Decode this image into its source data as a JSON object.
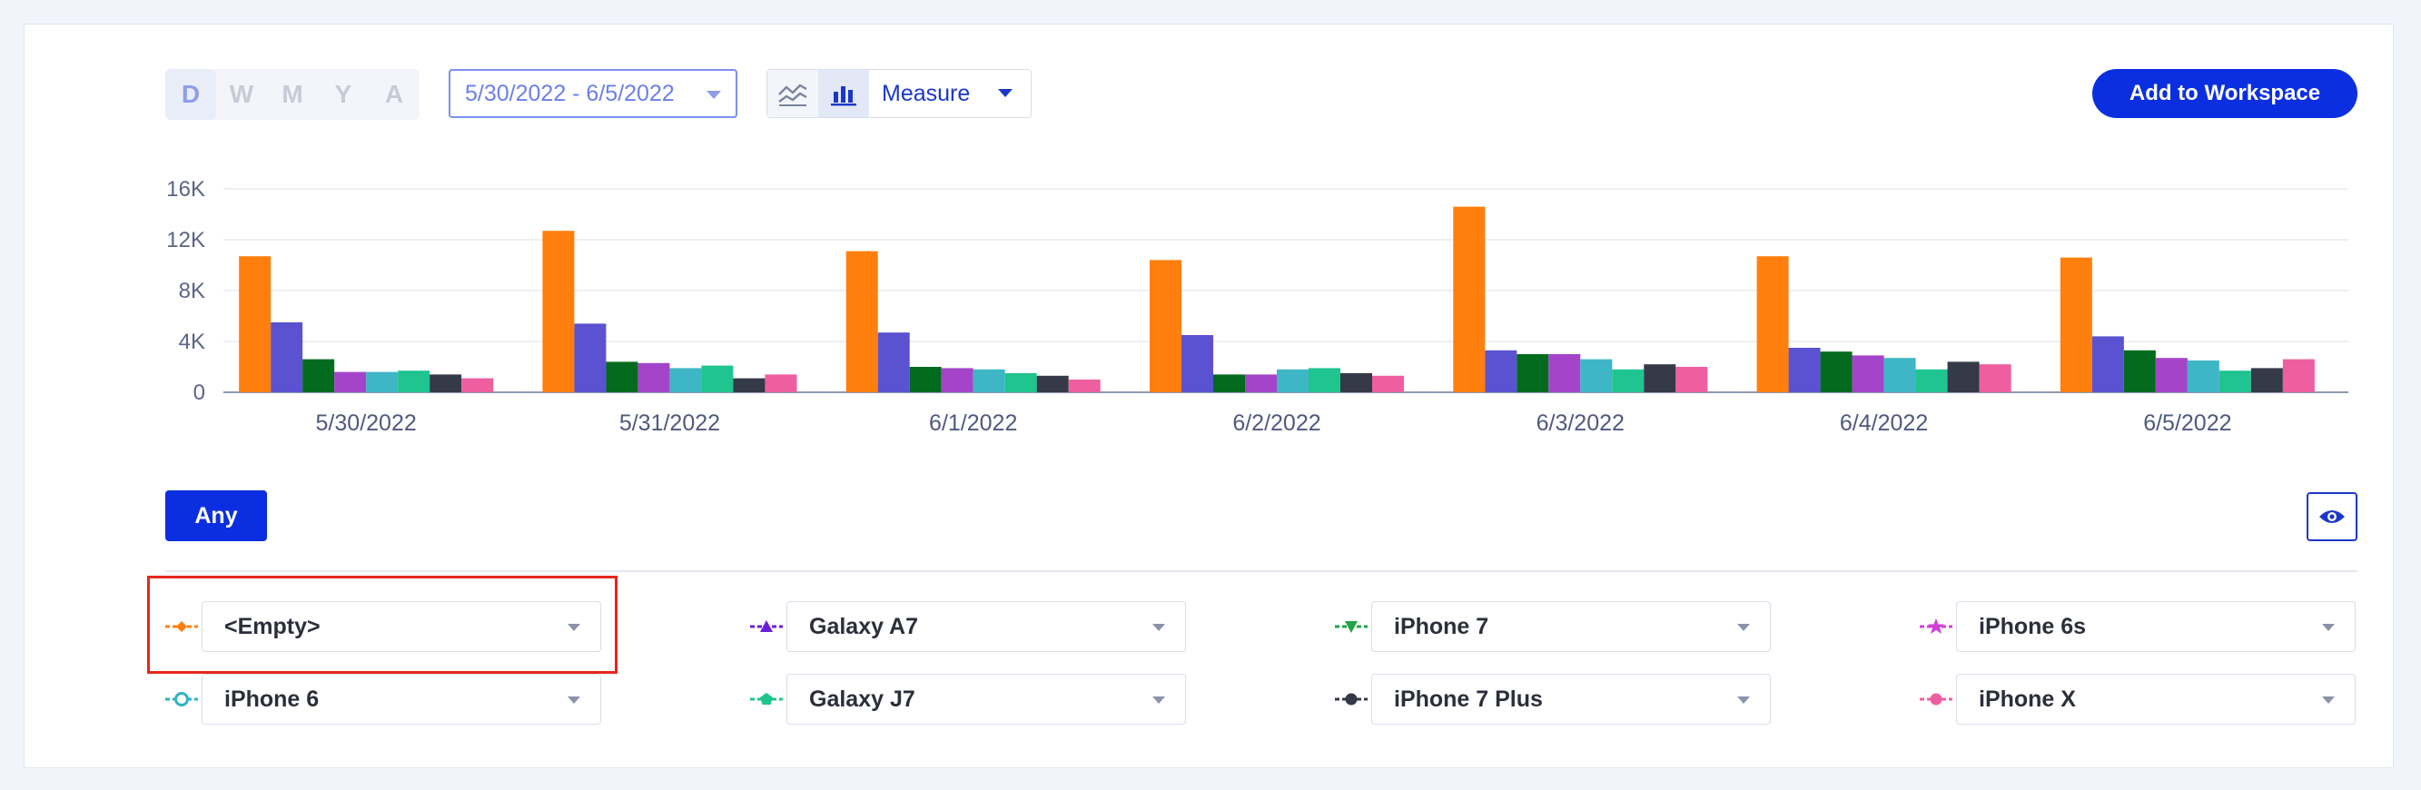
{
  "granularity": {
    "options": [
      "D",
      "W",
      "M",
      "Y",
      "A"
    ],
    "active": "D"
  },
  "date_range": "5/30/2022 - 6/5/2022",
  "measure_label": "Measure",
  "add_workspace_label": "Add to Workspace",
  "any_label": "Any",
  "chart_data": {
    "type": "bar",
    "categories": [
      "5/30/2022",
      "5/31/2022",
      "6/1/2022",
      "6/2/2022",
      "6/3/2022",
      "6/4/2022",
      "6/5/2022"
    ],
    "ylim": [
      0,
      16000
    ],
    "yticks": [
      0,
      4000,
      8000,
      12000,
      16000
    ],
    "ytick_labels": [
      "0",
      "4K",
      "8K",
      "12K",
      "16K"
    ],
    "grid": true,
    "series": [
      {
        "name": "<Empty>",
        "color": "#ff7f0e",
        "values": [
          10700,
          12700,
          11100,
          10400,
          14600,
          10700,
          10600
        ]
      },
      {
        "name": "Galaxy A7",
        "color": "#5b52d1",
        "values": [
          5500,
          5400,
          4700,
          4500,
          3300,
          3500,
          4400
        ]
      },
      {
        "name": "iPhone 7",
        "color": "#036b1e",
        "values": [
          2600,
          2400,
          2000,
          1400,
          3000,
          3200,
          3300
        ]
      },
      {
        "name": "iPhone 6s",
        "color": "#a445c9",
        "values": [
          1600,
          2300,
          1900,
          1400,
          3000,
          2900,
          2700
        ]
      },
      {
        "name": "iPhone 6",
        "color": "#3fb6c6",
        "values": [
          1600,
          1900,
          1800,
          1800,
          2600,
          2700,
          2500
        ]
      },
      {
        "name": "Galaxy J7",
        "color": "#1fc48f",
        "values": [
          1700,
          2100,
          1500,
          1900,
          1800,
          1800,
          1700
        ]
      },
      {
        "name": "iPhone 7 Plus",
        "color": "#343a47",
        "values": [
          1400,
          1100,
          1300,
          1500,
          2200,
          2400,
          1900
        ]
      },
      {
        "name": "iPhone X",
        "color": "#ee5fa0",
        "values": [
          1100,
          1400,
          1000,
          1300,
          2000,
          2200,
          2600
        ]
      }
    ]
  },
  "legend_filters": [
    {
      "label": "<Empty>",
      "color": "#ff7f0e",
      "marker": "diamond-icon"
    },
    {
      "label": "Galaxy A7",
      "color": "#6a20d8",
      "marker": "triangle-up-icon"
    },
    {
      "label": "iPhone 7",
      "color": "#22a447",
      "marker": "triangle-down-icon"
    },
    {
      "label": "iPhone 6s",
      "color": "#d23fd8",
      "marker": "star-icon"
    },
    {
      "label": "iPhone 6",
      "color": "#2fb2c6",
      "marker": "ring-icon"
    },
    {
      "label": "Galaxy J7",
      "color": "#1fc48f",
      "marker": "pentagon-icon"
    },
    {
      "label": "iPhone 7 Plus",
      "color": "#343a47",
      "marker": "circle-icon"
    },
    {
      "label": "iPhone X",
      "color": "#ee5fa0",
      "marker": "circle-icon"
    }
  ]
}
